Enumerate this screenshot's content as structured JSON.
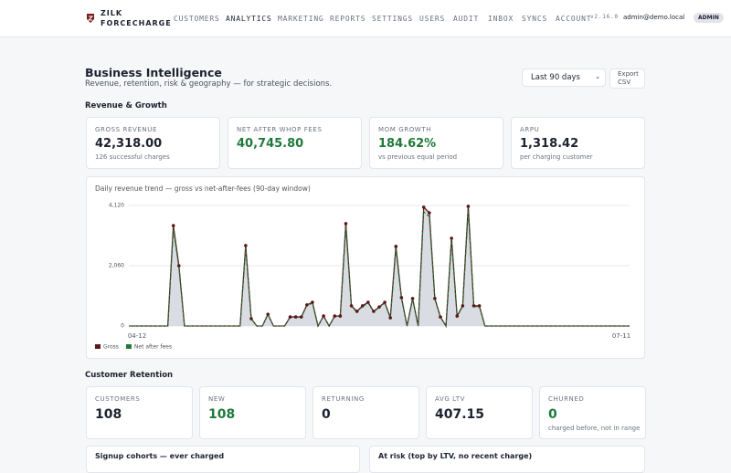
{
  "nav": {
    "brand": [
      "ZILK",
      "FORCECHARGE"
    ],
    "items": [
      "CUSTOMERS",
      "ANALYTICS",
      "MARKETING",
      "REPORTS",
      "SETTINGS",
      "USERS",
      "AUDIT",
      "INBOX",
      "SYNCS",
      "ACCOUNT"
    ],
    "version": "v2.16.0",
    "email": "admin@demo.local",
    "role": "ADMIN"
  },
  "header": {
    "title": "Business Intelligence",
    "subtitle": "Revenue, retention, risk & geography — for strategic decisions.",
    "range": "Last 90 days",
    "export": "Export CSV"
  },
  "revenue": {
    "title": "Revenue & Growth",
    "cards": [
      {
        "label": "GROSS REVENUE",
        "value": "42,318.00",
        "note": "126 successful charges"
      },
      {
        "label": "NET AFTER WHOP FEES",
        "value": "40,745.80"
      },
      {
        "label": "MOM GROWTH",
        "value": "184.62%",
        "note": "vs previous equal period"
      },
      {
        "label": "ARPU",
        "value": "1,318.42",
        "note": "per charging customer"
      }
    ]
  },
  "chart_data": {
    "type": "line",
    "title": "Daily revenue trend — gross vs net-after-fees (90-day window)",
    "categories": [
      "04-12",
      null,
      null,
      null,
      null,
      null,
      null,
      null,
      null,
      null,
      null,
      null,
      null,
      null,
      null,
      null,
      null,
      null,
      null,
      null,
      null,
      null,
      null,
      null,
      null,
      null,
      null,
      null,
      null,
      null,
      null,
      null,
      null,
      null,
      null,
      null,
      null,
      null,
      null,
      null,
      null,
      null,
      null,
      null,
      null,
      null,
      null,
      null,
      null,
      null,
      null,
      null,
      null,
      null,
      null,
      null,
      null,
      null,
      null,
      null,
      null,
      null,
      null,
      null,
      null,
      null,
      null,
      null,
      null,
      null,
      null,
      null,
      null,
      null,
      null,
      null,
      null,
      null,
      null,
      null,
      null,
      null,
      null,
      null,
      null,
      null,
      null,
      null,
      null,
      null,
      "07-11"
    ],
    "series": [
      {
        "name": "Gross",
        "color": "#5a1a1a",
        "values": [
          0,
          0,
          0,
          0,
          0,
          0,
          0,
          0,
          3430,
          2060,
          0,
          0,
          0,
          0,
          0,
          0,
          0,
          0,
          0,
          0,
          0,
          2750,
          250,
          0,
          0,
          400,
          0,
          0,
          0,
          310,
          310,
          310,
          720,
          810,
          0,
          340,
          0,
          340,
          340,
          3500,
          690,
          500,
          690,
          810,
          500,
          650,
          810,
          280,
          2720,
          970,
          0,
          940,
          0,
          4060,
          3870,
          940,
          310,
          0,
          3000,
          340,
          690,
          4090,
          690,
          690,
          0,
          0,
          0,
          0,
          0,
          0,
          0,
          0,
          0,
          0,
          0,
          0,
          0,
          0,
          0,
          0,
          0,
          0,
          0,
          0,
          0,
          0,
          0,
          0,
          0,
          0,
          0
        ]
      },
      {
        "name": "Net after fees",
        "color": "#1f7a3a",
        "values": [
          0,
          0,
          0,
          0,
          0,
          0,
          0,
          0,
          3300,
          1980,
          0,
          0,
          0,
          0,
          0,
          0,
          0,
          0,
          0,
          0,
          0,
          2650,
          240,
          0,
          0,
          390,
          0,
          0,
          0,
          300,
          300,
          300,
          690,
          780,
          0,
          330,
          0,
          330,
          330,
          3370,
          660,
          480,
          660,
          780,
          480,
          630,
          780,
          270,
          2620,
          930,
          0,
          910,
          0,
          3910,
          3730,
          910,
          300,
          0,
          2890,
          330,
          660,
          3940,
          660,
          660,
          0,
          0,
          0,
          0,
          0,
          0,
          0,
          0,
          0,
          0,
          0,
          0,
          0,
          0,
          0,
          0,
          0,
          0,
          0,
          0,
          0,
          0,
          0,
          0,
          0,
          0,
          0
        ]
      }
    ],
    "ylim": [
      0,
      4120
    ],
    "yticks": [
      0,
      {
        "value": 2060,
        "label": "2,060"
      },
      {
        "value": 4120,
        "label": "4,120"
      }
    ],
    "grid": true,
    "fill": "#d9dde3"
  },
  "retention": {
    "title": "Customer Retention",
    "cards": [
      {
        "label": "CUSTOMERS",
        "value": "108"
      },
      {
        "label": "NEW",
        "value": "108"
      },
      {
        "label": "RETURNING",
        "value": "0"
      },
      {
        "label": "AVG LTV",
        "value": "407.15"
      },
      {
        "label": "CHURNED",
        "value": "0",
        "note": "charged before, not in range"
      }
    ]
  },
  "bottom": [
    "Signup cohorts — ever charged",
    "At risk (top by LTV, no recent charge)"
  ]
}
